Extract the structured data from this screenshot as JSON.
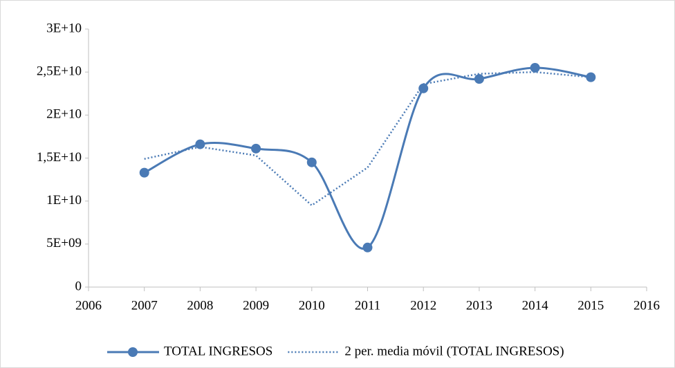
{
  "chart_data": {
    "type": "line",
    "x": [
      2007,
      2008,
      2009,
      2010,
      2011,
      2012,
      2013,
      2014,
      2015
    ],
    "series": [
      {
        "name": "TOTAL INGRESOS",
        "color": "#4a7ab5",
        "style": "solid",
        "smooth": true,
        "markers": true,
        "values": [
          13300000000,
          16600000000,
          16100000000,
          14500000000,
          4600000000,
          23100000000,
          24200000000,
          25500000000,
          24400000000
        ]
      },
      {
        "name": "2 per. media móvil (TOTAL INGRESOS)",
        "color": "#4a7ab5",
        "style": "dotted",
        "smooth": false,
        "markers": false,
        "values": [
          14900000000,
          16300000000,
          15300000000,
          9500000000,
          13900000000,
          23600000000,
          24800000000,
          25000000000,
          24400000000
        ]
      }
    ],
    "xlim": [
      2006,
      2016
    ],
    "xticks": [
      2006,
      2007,
      2008,
      2009,
      2010,
      2011,
      2012,
      2013,
      2014,
      2015,
      2016
    ],
    "ylim": [
      0,
      30000000000
    ],
    "yticks": [
      0,
      {
        "value": 5000000000,
        "label": "5E+09"
      },
      {
        "value": 10000000000,
        "label": "1E+10"
      },
      {
        "value": 15000000000,
        "label": "1,5E+10"
      },
      {
        "value": 20000000000,
        "label": "2E+10"
      },
      {
        "value": 25000000000,
        "label": "2,5E+10"
      },
      {
        "value": 30000000000,
        "label": "3E+10"
      }
    ],
    "grid": false,
    "legend": "bottom"
  }
}
